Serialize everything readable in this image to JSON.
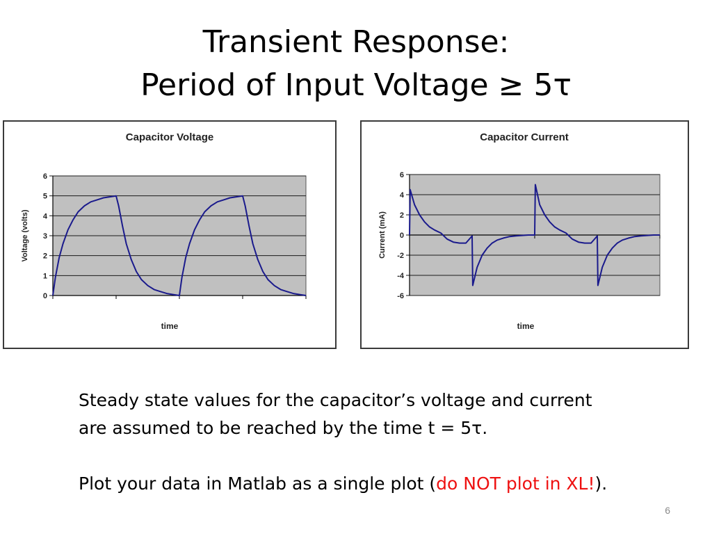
{
  "slide": {
    "title_line1": "Transient Response:",
    "title_line2": "Period of Input Voltage ≥  5τ",
    "paragraph1_line1": "Steady state values for the capacitor’s voltage and current",
    "paragraph1_line2": "are assumed to be reached by the time t = 5τ.",
    "paragraph2_before": "Plot your data in Matlab as a single plot (",
    "paragraph2_highlight": "do NOT plot in XL!",
    "paragraph2_after": ").",
    "page_number": "6"
  },
  "colors": {
    "plot_area": "#c0c0c0",
    "curve": "#1a1a8c",
    "highlight_text": "#ee1111"
  },
  "chart_data": [
    {
      "type": "line",
      "title": "Capacitor Voltage",
      "xlabel": "time",
      "ylabel": "Voltage (volts)",
      "ylim": [
        0,
        6
      ],
      "yticks": [
        "0",
        "1",
        "2",
        "3",
        "4",
        "5",
        "6"
      ],
      "grid": true,
      "x_tick_labels": "none",
      "series": [
        {
          "values_description_free": true,
          "x": [
            0,
            0.02,
            0.05,
            0.08,
            0.12,
            0.16,
            0.2,
            0.25,
            0.3,
            0.35,
            0.4,
            0.45,
            0.5,
            0.52,
            0.55,
            0.58,
            0.62,
            0.66,
            0.7,
            0.75,
            0.8,
            0.85,
            0.9,
            0.95,
            1.0,
            1.02,
            1.05,
            1.08,
            1.12,
            1.16,
            1.2,
            1.25,
            1.3,
            1.35,
            1.4,
            1.45,
            1.5,
            1.52,
            1.55,
            1.58,
            1.62,
            1.66,
            1.7,
            1.75,
            1.8,
            1.85,
            1.9,
            1.95,
            2.0
          ],
          "y": [
            0,
            0.9,
            1.9,
            2.6,
            3.3,
            3.8,
            4.2,
            4.5,
            4.7,
            4.8,
            4.9,
            4.95,
            5.0,
            4.5,
            3.5,
            2.6,
            1.8,
            1.2,
            0.8,
            0.5,
            0.3,
            0.2,
            0.1,
            0.05,
            0,
            0.9,
            1.9,
            2.6,
            3.3,
            3.8,
            4.2,
            4.5,
            4.7,
            4.8,
            4.9,
            4.95,
            5.0,
            4.5,
            3.5,
            2.6,
            1.8,
            1.2,
            0.8,
            0.5,
            0.3,
            0.2,
            0.1,
            0.05,
            0
          ]
        }
      ]
    },
    {
      "type": "line",
      "title": "Capacitor Current",
      "xlabel": "time",
      "ylabel": "Current (mA)",
      "ylim": [
        -6,
        6
      ],
      "yticks": [
        "-6",
        "-4",
        "-2",
        "0",
        "2",
        "4",
        "6"
      ],
      "grid": true,
      "x_tick_labels": "none",
      "series": [
        {
          "x": [
            0,
            0.005,
            0.04,
            0.08,
            0.12,
            0.16,
            0.2,
            0.25,
            0.3,
            0.35,
            0.4,
            0.45,
            0.5,
            0.505,
            0.54,
            0.58,
            0.62,
            0.66,
            0.7,
            0.75,
            0.8,
            0.85,
            0.9,
            0.95,
            1.0,
            1.005,
            1.04,
            1.08,
            1.12,
            1.16,
            1.2,
            1.25,
            1.3,
            1.35,
            1.4,
            1.45,
            1.5,
            1.505,
            1.54,
            1.58,
            1.62,
            1.66,
            1.7,
            1.75,
            1.8,
            1.85,
            1.9,
            1.95,
            2.0
          ],
          "y": [
            0,
            4.5,
            3.0,
            2.0,
            1.3,
            0.8,
            0.5,
            0.2,
            -0.4,
            -0.7,
            -0.8,
            -0.8,
            -0.1,
            -5.0,
            -3.2,
            -2.0,
            -1.3,
            -0.8,
            -0.5,
            -0.3,
            -0.15,
            -0.08,
            -0.04,
            0,
            0,
            5.0,
            3.0,
            2.0,
            1.3,
            0.8,
            0.5,
            0.2,
            -0.4,
            -0.7,
            -0.8,
            -0.8,
            -0.1,
            -5.0,
            -3.2,
            -2.0,
            -1.3,
            -0.8,
            -0.5,
            -0.3,
            -0.15,
            -0.08,
            -0.04,
            0,
            0
          ]
        }
      ]
    }
  ]
}
